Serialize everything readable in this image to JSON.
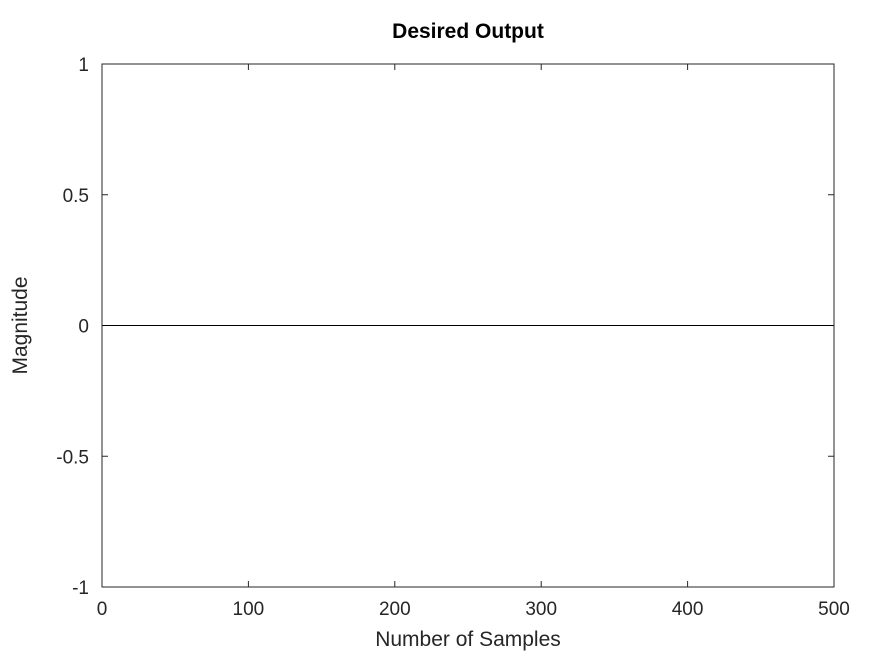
{
  "chart_data": {
    "type": "line",
    "title": "Desired Output",
    "xlabel": "Number of Samples",
    "ylabel": "Magnitude",
    "xlim": [
      0,
      500
    ],
    "ylim": [
      -1,
      1
    ],
    "xticks": [
      0,
      100,
      200,
      300,
      400,
      500
    ],
    "yticks": [
      -1,
      -0.5,
      0,
      0.5,
      1
    ],
    "xtick_labels": [
      "0",
      "100",
      "200",
      "300",
      "400",
      "500"
    ],
    "ytick_labels": [
      "-1",
      "-0.5",
      "0",
      "0.5",
      "1"
    ],
    "grid": false,
    "legend": "none",
    "series": [
      {
        "color": "#000000",
        "x": [
          0,
          500
        ],
        "y": [
          0,
          0
        ]
      }
    ]
  }
}
